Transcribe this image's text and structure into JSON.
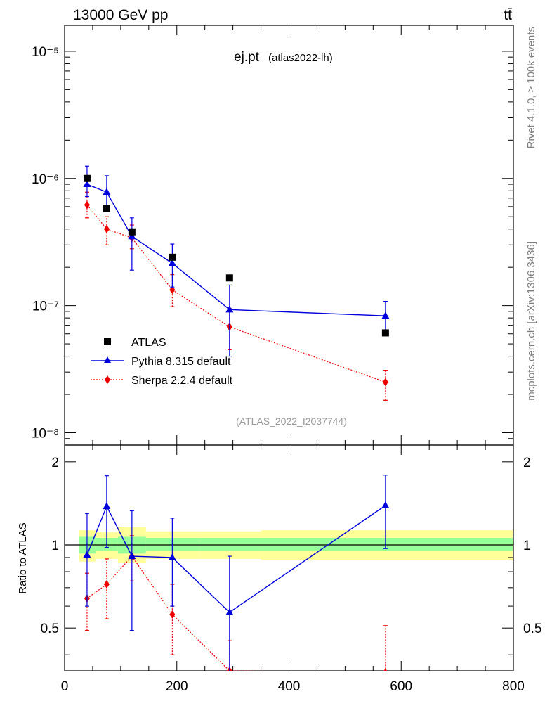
{
  "header": {
    "beam_label": "13000 GeV pp",
    "process_label": "tt̄"
  },
  "side_text": {
    "rivet": "Rivet 4.1.0, ≥ 100k events",
    "mcplots": "mcplots.cern.ch [arXiv:1306.3436]"
  },
  "colors": {
    "data": "#000000",
    "pythia": "#0000dd",
    "sherpa": "#ee0000",
    "band_outer": "#ffff99",
    "band_inner": "#99ff99"
  },
  "chart_data": [
    {
      "type": "scatter",
      "panel": "main",
      "title": "ej.pt",
      "subtitle": "(atlas2022-lh)",
      "watermark": "(ATLAS_2022_I2037744)",
      "yscale": "log",
      "xlim": [
        0,
        800
      ],
      "ylim": [
        8e-09,
        1.6e-05
      ],
      "ytick_labels": [
        "10⁻⁸",
        "10⁻⁷",
        "10⁻⁶",
        "10⁻⁵"
      ],
      "legend_position": "lower-left",
      "series": [
        {
          "name": "ATLAS",
          "style": "markers",
          "x": [
            40,
            75,
            120,
            192,
            294,
            572
          ],
          "y": [
            1e-06,
            5.8e-07,
            3.8e-07,
            2.4e-07,
            1.65e-07,
            6.1e-08
          ]
        },
        {
          "name": "Pythia 8.315 default",
          "style": "line-triangle",
          "x": [
            40,
            75,
            120,
            192,
            294,
            572
          ],
          "y": [
            9e-07,
            7.8e-07,
            3.5e-07,
            2.15e-07,
            9.3e-08,
            8.3e-08
          ],
          "yerr_low": [
            7.2e-07,
            5.6e-07,
            1.9e-07,
            1.4e-07,
            4e-08,
            6.1e-08
          ],
          "yerr_high": [
            1.25e-06,
            1.05e-06,
            4.9e-07,
            3.05e-07,
            1.45e-07,
            1.08e-07
          ]
        },
        {
          "name": "Sherpa 2.2.4 default",
          "style": "dotted-diamond",
          "x": [
            40,
            75,
            120,
            192,
            294,
            572
          ],
          "y": [
            6.2e-07,
            4e-07,
            3.4e-07,
            1.33e-07,
            6.8e-08,
            2.5e-08
          ],
          "yerr_low": [
            4.9e-07,
            3e-07,
            2.8e-07,
            9.8e-08,
            4.5e-08,
            1.8e-08
          ],
          "yerr_high": [
            7.8e-07,
            5e-07,
            4.3e-07,
            1.75e-07,
            9.5e-08,
            3.1e-08
          ]
        }
      ]
    },
    {
      "type": "scatter",
      "panel": "ratio",
      "ylabel": "Ratio to ATLAS",
      "xlim": [
        0,
        800
      ],
      "ylim": [
        0.35,
        2.3
      ],
      "xtick_labels": [
        "0",
        "200",
        "400",
        "600",
        "800"
      ],
      "ytick_labels": [
        "0.5",
        "1",
        "2"
      ],
      "reference_line": 1,
      "bands": [
        {
          "x0": 25,
          "x1": 55,
          "inner": [
            0.93,
            1.07
          ],
          "outer": [
            0.87,
            1.13
          ]
        },
        {
          "x0": 55,
          "x1": 95,
          "inner": [
            0.95,
            1.06
          ],
          "outer": [
            0.89,
            1.11
          ]
        },
        {
          "x0": 95,
          "x1": 145,
          "inner": [
            0.93,
            1.07
          ],
          "outer": [
            0.86,
            1.16
          ]
        },
        {
          "x0": 145,
          "x1": 240,
          "inner": [
            0.95,
            1.06
          ],
          "outer": [
            0.89,
            1.12
          ]
        },
        {
          "x0": 240,
          "x1": 350,
          "inner": [
            0.95,
            1.06
          ],
          "outer": [
            0.89,
            1.12
          ]
        },
        {
          "x0": 350,
          "x1": 800,
          "inner": [
            0.95,
            1.06
          ],
          "outer": [
            0.88,
            1.13
          ]
        }
      ],
      "series": [
        {
          "name": "Pythia 8.315 default",
          "style": "line-triangle",
          "x": [
            40,
            75,
            120,
            192,
            294,
            572
          ],
          "y": [
            0.92,
            1.38,
            0.91,
            0.9,
            0.57,
            1.39
          ],
          "yerr_low": [
            0.6,
            0.98,
            0.49,
            0.6,
            0.33,
            0.97
          ],
          "yerr_high": [
            1.3,
            1.78,
            1.33,
            1.25,
            0.91,
            1.79
          ]
        },
        {
          "name": "Sherpa 2.2.4 default",
          "style": "dotted-diamond",
          "x": [
            40,
            75,
            120,
            192,
            294,
            572
          ],
          "y": [
            0.64,
            0.72,
            0.91,
            0.56,
            0.35,
            0.345
          ],
          "yerr_low": [
            0.49,
            0.54,
            0.74,
            0.4,
            0.25,
            0.25
          ],
          "yerr_high": [
            0.79,
            0.89,
            1.08,
            0.72,
            0.45,
            0.51
          ]
        }
      ]
    }
  ]
}
